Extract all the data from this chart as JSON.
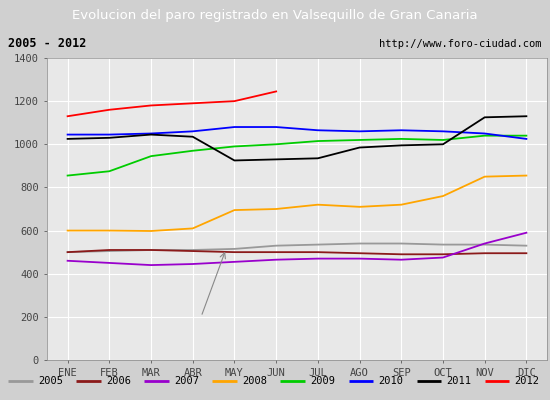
{
  "title": "Evolucion del paro registrado en Valsequillo de Gran Canaria",
  "subtitle_left": "2005 - 2012",
  "subtitle_right": "http://www.foro-ciudad.com",
  "xlabel_months": [
    "ENE",
    "FEB",
    "MAR",
    "ABR",
    "MAY",
    "JUN",
    "JUL",
    "AGO",
    "SEP",
    "OCT",
    "NOV",
    "DIC"
  ],
  "ylim": [
    0,
    1400
  ],
  "yticks": [
    0,
    200,
    400,
    600,
    800,
    1000,
    1200,
    1400
  ],
  "series": {
    "2005": {
      "color": "#999999",
      "values": [
        500,
        505,
        510,
        510,
        515,
        530,
        535,
        540,
        540,
        535,
        535,
        530
      ]
    },
    "2006": {
      "color": "#8B1A1A",
      "values": [
        500,
        510,
        510,
        505,
        500,
        500,
        500,
        495,
        490,
        490,
        495,
        495
      ]
    },
    "2007": {
      "color": "#9900CC",
      "values": [
        460,
        450,
        440,
        445,
        455,
        465,
        470,
        470,
        465,
        475,
        540,
        590
      ]
    },
    "2008": {
      "color": "#FFA500",
      "values": [
        600,
        600,
        598,
        610,
        695,
        700,
        720,
        710,
        720,
        760,
        850,
        855
      ]
    },
    "2009": {
      "color": "#00CC00",
      "values": [
        855,
        875,
        945,
        970,
        990,
        1000,
        1015,
        1020,
        1025,
        1020,
        1040,
        1040
      ]
    },
    "2010": {
      "color": "#0000FF",
      "values": [
        1045,
        1045,
        1050,
        1060,
        1080,
        1080,
        1065,
        1060,
        1065,
        1060,
        1050,
        1025
      ]
    },
    "2011": {
      "color": "#000000",
      "values": [
        1025,
        1030,
        1045,
        1035,
        925,
        930,
        935,
        985,
        995,
        1000,
        1125,
        1130
      ]
    },
    "2012": {
      "color": "#FF0000",
      "values": [
        1130,
        1160,
        1180,
        1190,
        1200,
        1245,
        null,
        null,
        null,
        null,
        null,
        null
      ]
    }
  },
  "bg_color": "#D0D0D0",
  "plot_bg_color": "#E8E8E8",
  "title_bg_color": "#4472C4",
  "title_text_color": "#FFFFFF",
  "header_bg_color": "#F0F0F0",
  "grid_color": "#FFFFFF"
}
